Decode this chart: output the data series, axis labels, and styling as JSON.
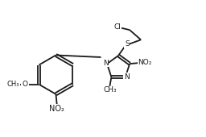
{
  "background_color": "#ffffff",
  "line_color": "#1a1a1a",
  "line_width": 1.3,
  "font_size": 6.5,
  "figsize": [
    2.56,
    1.7
  ],
  "dpi": 100,
  "xlim": [
    0,
    10
  ],
  "ylim": [
    0,
    6.6
  ]
}
